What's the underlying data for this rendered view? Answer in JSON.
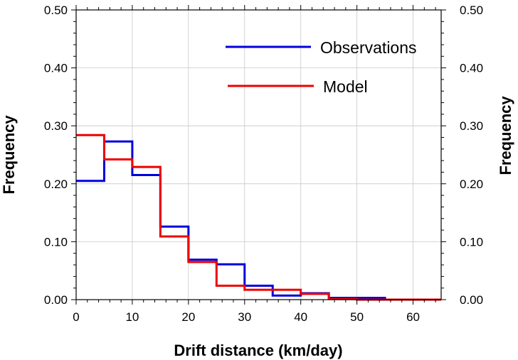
{
  "chart_data": {
    "type": "line",
    "title": "",
    "xlabel": "Drift distance (km/day)",
    "ylabel": "Frequency",
    "ylabel_right": "Frequency",
    "xlim": [
      0,
      65
    ],
    "ylim": [
      0,
      0.5
    ],
    "xticks": [
      0,
      10,
      20,
      30,
      40,
      50,
      60
    ],
    "xtick_labels": [
      "0",
      "10",
      "20",
      "30",
      "40",
      "50",
      "60"
    ],
    "yticks": [
      0,
      0.1,
      0.2,
      0.3,
      0.4,
      0.5
    ],
    "ytick_labels": [
      "0.00",
      "0.10",
      "0.20",
      "0.30",
      "0.40",
      "0.50"
    ],
    "grid": true,
    "legend_position": "top-right",
    "bin_edges": [
      0,
      5,
      10,
      15,
      20,
      25,
      30,
      35,
      40,
      45,
      50,
      55,
      60,
      65
    ],
    "series": [
      {
        "name": "Observations",
        "color": "#0000dd",
        "values": [
          0.205,
          0.273,
          0.215,
          0.126,
          0.069,
          0.061,
          0.024,
          0.007,
          0.011,
          0.003,
          0.003,
          0.0,
          0.0
        ]
      },
      {
        "name": "Model",
        "color": "#ee0000",
        "values": [
          0.284,
          0.242,
          0.229,
          0.109,
          0.065,
          0.024,
          0.017,
          0.017,
          0.01,
          0.001,
          0.0,
          0.0,
          0.0
        ]
      }
    ]
  }
}
